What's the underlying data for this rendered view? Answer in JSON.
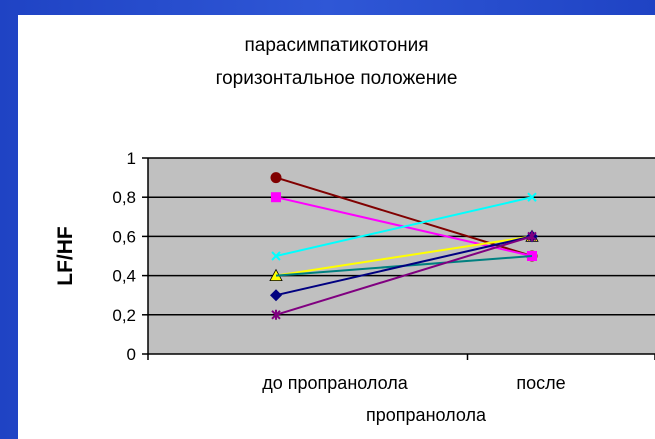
{
  "chart_data": {
    "type": "line",
    "title_lines": [
      "парасимпатикотония",
      "горизонтальное положение"
    ],
    "ylabel": "LF/HF",
    "xlabel": "",
    "categories": [
      [
        "до пропранолола"
      ],
      [
        "после",
        "пропранолола"
      ]
    ],
    "ylim": [
      0,
      1
    ],
    "y_ticks": [
      "0",
      "0,2",
      "0,4",
      "0,6",
      "0,8",
      "1"
    ],
    "y_tick_values": [
      0,
      0.2,
      0.4,
      0.6,
      0.8,
      1
    ],
    "grid": true,
    "plot_background": "#c0c0c0",
    "series": [
      {
        "values": [
          0.9,
          0.5
        ],
        "color": "#800000",
        "marker": "circle"
      },
      {
        "values": [
          0.8,
          0.5
        ],
        "color": "#ff00ff",
        "marker": "square"
      },
      {
        "values": [
          0.5,
          0.8
        ],
        "color": "#00ffff",
        "marker": "x"
      },
      {
        "values": [
          0.4,
          0.6
        ],
        "color": "#ffff00",
        "marker": "triangle"
      },
      {
        "values": [
          0.4,
          0.5
        ],
        "color": "#008080",
        "marker": "none"
      },
      {
        "values": [
          0.3,
          0.6
        ],
        "color": "#000080",
        "marker": "diamond"
      },
      {
        "values": [
          0.2,
          0.6
        ],
        "color": "#800080",
        "marker": "star"
      }
    ]
  }
}
